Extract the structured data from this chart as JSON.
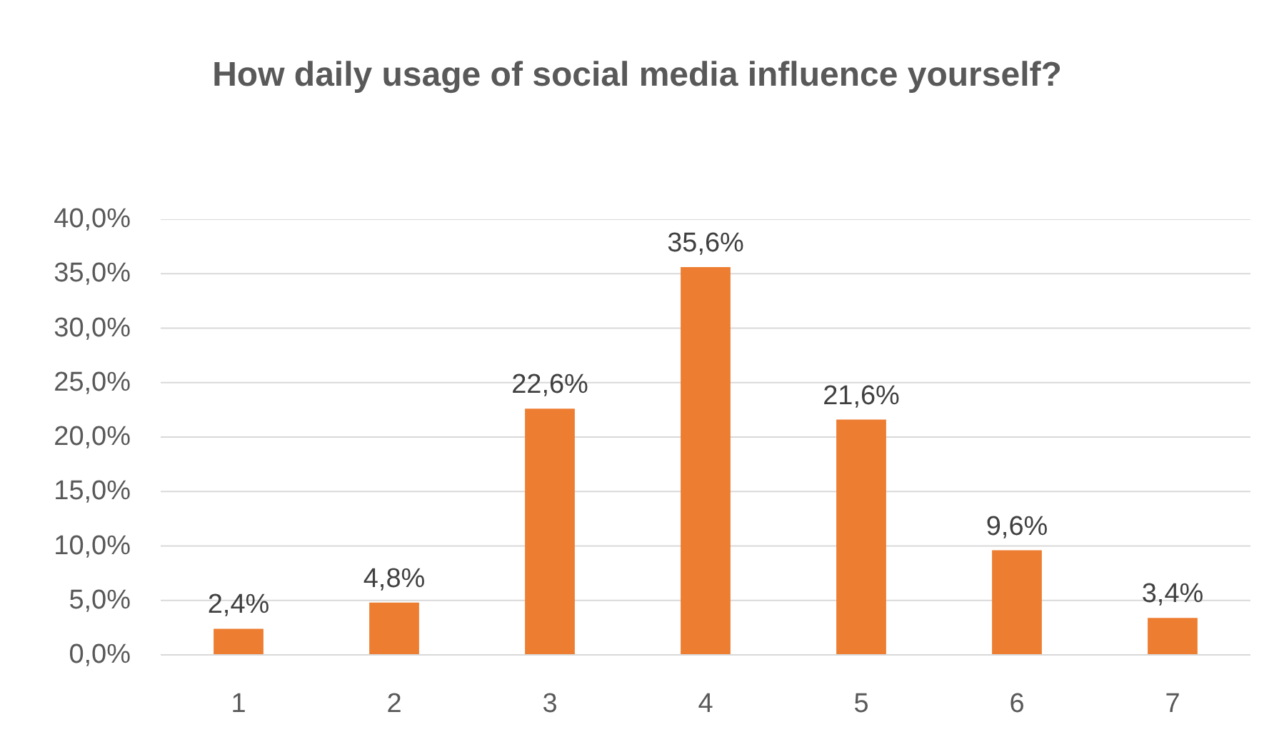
{
  "chart_data": {
    "type": "bar",
    "title": "How daily usage of social media influence yourself?",
    "categories": [
      "1",
      "2",
      "3",
      "4",
      "5",
      "6",
      "7"
    ],
    "values": [
      2.4,
      4.8,
      22.6,
      35.6,
      21.6,
      9.6,
      3.4
    ],
    "value_labels": [
      "2,4%",
      "4,8%",
      "22,6%",
      "35,6%",
      "21,6%",
      "9,6%",
      "3,4%"
    ],
    "color": "#ed7d31",
    "ylim": [
      0,
      40
    ],
    "yticks": [
      {
        "value": 0,
        "label": "0,0%"
      },
      {
        "value": 5,
        "label": "5,0%"
      },
      {
        "value": 10,
        "label": "10,0%"
      },
      {
        "value": 15,
        "label": "15,0%"
      },
      {
        "value": 20,
        "label": "20,0%"
      },
      {
        "value": 25,
        "label": "25,0%"
      },
      {
        "value": 30,
        "label": "30,0%"
      },
      {
        "value": 35,
        "label": "35,0%"
      },
      {
        "value": 40,
        "label": "40,0%"
      }
    ],
    "grid": "y"
  }
}
